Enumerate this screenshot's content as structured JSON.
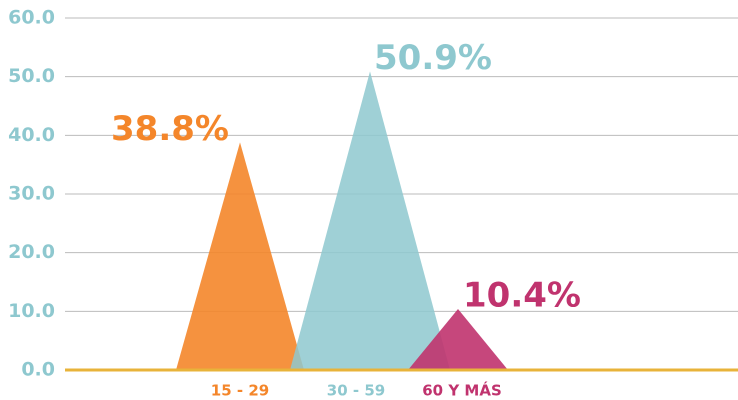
{
  "chart_data": {
    "type": "triangle",
    "categories": [
      "15 - 29",
      "30 - 59",
      "60 Y MÁS"
    ],
    "values": [
      38.8,
      50.9,
      10.4
    ],
    "value_labels": [
      "38.8%",
      "50.9%",
      "10.4%"
    ],
    "colors": [
      "#f4862a",
      "#8ec8cf",
      "#c0336e"
    ],
    "ylim": [
      0,
      60
    ],
    "yticks": [
      {
        "value": 0,
        "label": "0.0"
      },
      {
        "value": 10,
        "label": "10.0"
      },
      {
        "value": 20,
        "label": "20.0"
      },
      {
        "value": 30,
        "label": "30.0"
      },
      {
        "value": 40,
        "label": "40.0"
      },
      {
        "value": 50,
        "label": "50.0"
      },
      {
        "value": 60,
        "label": "60.0"
      }
    ],
    "grid": true
  }
}
